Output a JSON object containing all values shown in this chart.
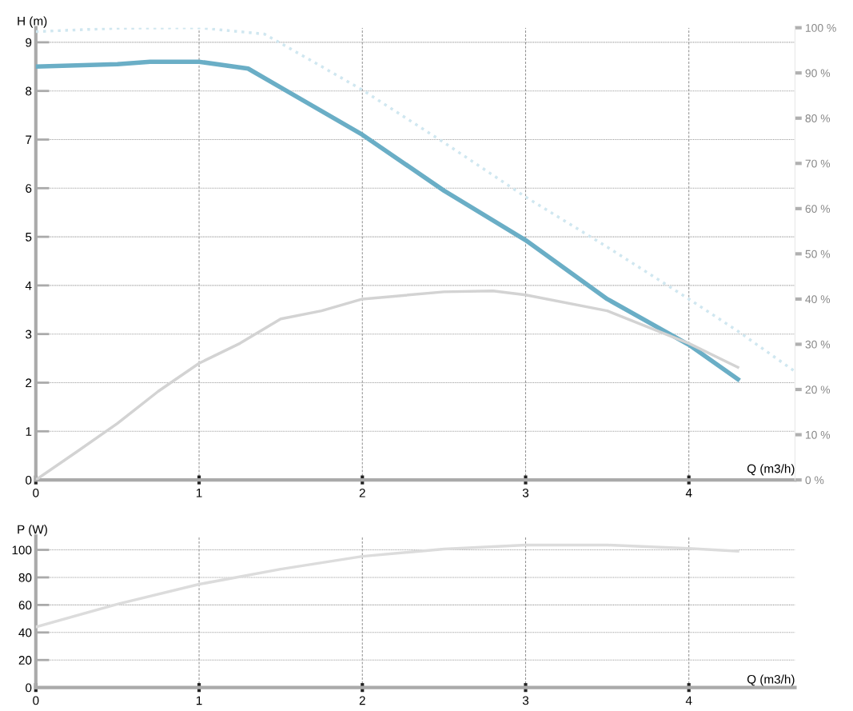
{
  "chart_data": [
    {
      "type": "line",
      "xlabel": "Q (m3/h)",
      "ylabel": "H (m)",
      "xlim": [
        0,
        4.65
      ],
      "xticks": [
        0,
        1,
        2,
        3,
        4
      ],
      "ylim": [
        0,
        9.3
      ],
      "yticks": [
        0,
        1,
        2,
        3,
        4,
        5,
        6,
        7,
        8,
        9
      ],
      "y2lim": [
        0,
        100
      ],
      "y2ticks": [
        {
          "value": 0,
          "label": "0 %"
        },
        {
          "value": 10,
          "label": "10 %"
        },
        {
          "value": 20,
          "label": "20 %"
        },
        {
          "value": 30,
          "label": "30 %"
        },
        {
          "value": 40,
          "label": "40 %"
        },
        {
          "value": 50,
          "label": "50 %"
        },
        {
          "value": 60,
          "label": "60 %"
        },
        {
          "value": 70,
          "label": "70 %"
        },
        {
          "value": 80,
          "label": "80 %"
        },
        {
          "value": 90,
          "label": "90 %"
        },
        {
          "value": 100,
          "label": "100 %"
        }
      ],
      "grid": true,
      "legend": false,
      "marker": "none",
      "series": [
        {
          "color": "#d0e7f0",
          "line_style": "dotted",
          "x": [
            0,
            0.5,
            1,
            1.4,
            1.7,
            2,
            2.5,
            3,
            3.5,
            4,
            4.3,
            4.65
          ],
          "values": [
            9.22,
            9.29,
            9.3,
            9.17,
            8.6,
            8.02,
            6.94,
            5.82,
            4.79,
            3.72,
            3.06,
            2.23
          ]
        },
        {
          "color": "#d3d3d3",
          "axis": "y2",
          "line_style": "solid",
          "x": [
            0,
            0.25,
            0.5,
            0.75,
            1,
            1.25,
            1.5,
            1.75,
            2,
            2.5,
            2.8,
            3,
            3.5,
            4,
            4.3
          ],
          "values": [
            0,
            6.2,
            12.5,
            19.6,
            25.8,
            30.2,
            35.6,
            37.4,
            40,
            41.6,
            41.8,
            40.9,
            37.4,
            30.2,
            24.9
          ]
        },
        {
          "color": "#6aaec6",
          "line_style": "solid",
          "x": [
            0,
            0.5,
            0.7,
            1,
            1.3,
            1.5,
            2,
            2.5,
            3,
            3.5,
            4,
            4.3
          ],
          "values": [
            8.5,
            8.55,
            8.6,
            8.6,
            8.46,
            8.07,
            7.1,
            5.95,
            4.93,
            3.72,
            2.78,
            2.07
          ]
        }
      ]
    },
    {
      "type": "line",
      "xlabel": "Q (m3/h)",
      "ylabel": "P (W)",
      "xlim": [
        0,
        4.65
      ],
      "xticks": [
        0,
        1,
        2,
        3,
        4
      ],
      "ylim": [
        0,
        110
      ],
      "yticks": [
        0,
        20,
        40,
        60,
        80,
        100
      ],
      "grid": true,
      "legend": false,
      "marker": "none",
      "series": [
        {
          "color": "#dcdcdc",
          "line_style": "solid",
          "x": [
            0,
            0.5,
            1,
            1.5,
            2,
            2.5,
            3,
            3.5,
            4,
            4.3
          ],
          "values": [
            44,
            60.6,
            75,
            86,
            95.3,
            100.6,
            103.5,
            103.5,
            101,
            99
          ]
        }
      ]
    }
  ]
}
